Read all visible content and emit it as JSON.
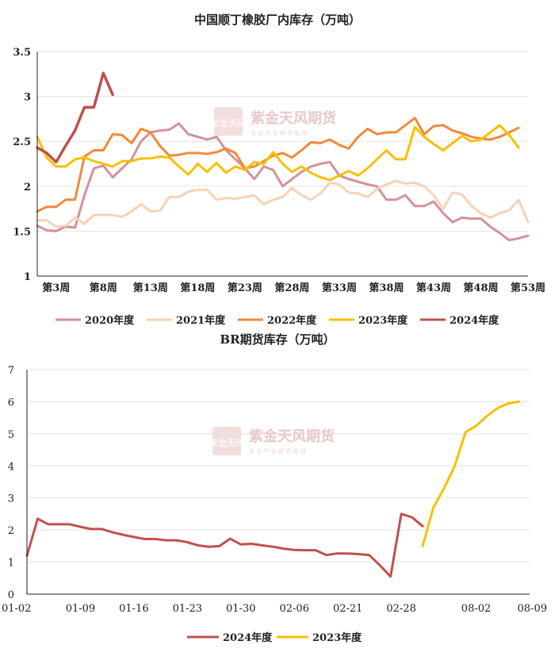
{
  "chart_data": [
    {
      "type": "line",
      "title": "中国顺丁橡胶厂内库存（万吨）",
      "xlabel": "",
      "ylabel": "",
      "ylim": [
        1,
        3.5
      ],
      "yticks": [
        "1",
        "1.5",
        "2",
        "2.5",
        "3",
        "3.5"
      ],
      "xrange": [
        1,
        53
      ],
      "xticks": [
        "第3周",
        "第8周",
        "第13周",
        "第18周",
        "第23周",
        "第28周",
        "第33周",
        "第38周",
        "第43周",
        "第48周",
        "第53周"
      ],
      "xtick_weeks": [
        3,
        8,
        13,
        18,
        23,
        28,
        33,
        38,
        43,
        48,
        53
      ],
      "series": [
        {
          "name": "2020年度",
          "color": "#d4919a",
          "start_week": 1,
          "values": [
            1.56,
            1.51,
            1.5,
            1.55,
            1.54,
            1.9,
            2.2,
            2.23,
            2.1,
            2.2,
            2.3,
            2.5,
            2.6,
            2.62,
            2.63,
            2.7,
            2.58,
            2.55,
            2.52,
            2.55,
            2.4,
            2.3,
            2.2,
            2.08,
            2.22,
            2.18,
            2.0,
            2.08,
            2.16,
            2.22,
            2.25,
            2.27,
            2.12,
            2.08,
            2.05,
            2.02,
            2.0,
            1.85,
            1.85,
            1.9,
            1.78,
            1.78,
            1.83,
            1.7,
            1.6,
            1.65,
            1.64,
            1.64,
            1.55,
            1.48,
            1.4,
            1.42,
            1.45
          ]
        },
        {
          "name": "2021年度",
          "color": "#f8d2b5",
          "start_week": 1,
          "values": [
            1.62,
            1.62,
            1.55,
            1.56,
            1.65,
            1.58,
            1.68,
            1.68,
            1.68,
            1.66,
            1.72,
            1.8,
            1.72,
            1.73,
            1.88,
            1.88,
            1.94,
            1.96,
            1.96,
            1.85,
            1.87,
            1.86,
            1.88,
            1.9,
            1.8,
            1.85,
            1.88,
            1.98,
            1.9,
            1.85,
            1.92,
            2.04,
            2.02,
            1.93,
            1.92,
            1.88,
            1.97,
            2.02,
            2.06,
            2.03,
            2.04,
            2.0,
            1.9,
            1.75,
            1.93,
            1.91,
            1.78,
            1.7,
            1.65,
            1.7,
            1.73,
            1.85,
            1.6
          ]
        },
        {
          "name": "2022年度",
          "color": "#f08a3c",
          "start_week": 1,
          "values": [
            1.72,
            1.77,
            1.77,
            1.85,
            1.85,
            2.33,
            2.4,
            2.4,
            2.58,
            2.57,
            2.48,
            2.64,
            2.6,
            2.45,
            2.34,
            2.35,
            2.37,
            2.37,
            2.36,
            2.38,
            2.42,
            2.37,
            2.2,
            2.22,
            2.28,
            2.34,
            2.37,
            2.32,
            2.4,
            2.49,
            2.48,
            2.52,
            2.46,
            2.42,
            2.55,
            2.64,
            2.58,
            2.6,
            2.6,
            2.68,
            2.76,
            2.58,
            2.67,
            2.68,
            2.62,
            2.59,
            2.55,
            2.53,
            2.52,
            2.55,
            2.6,
            2.65
          ]
        },
        {
          "name": "2023年度",
          "color": "#f8c000",
          "start_week": 1,
          "values": [
            2.55,
            2.32,
            2.22,
            2.22,
            2.3,
            2.32,
            2.28,
            2.25,
            2.22,
            2.28,
            2.28,
            2.31,
            2.31,
            2.33,
            2.32,
            2.22,
            2.13,
            2.25,
            2.16,
            2.26,
            2.15,
            2.22,
            2.18,
            2.27,
            2.25,
            2.38,
            2.25,
            2.16,
            2.22,
            2.15,
            2.1,
            2.07,
            2.12,
            2.17,
            2.12,
            2.2,
            2.3,
            2.4,
            2.3,
            2.3,
            2.66,
            2.55,
            2.47,
            2.4,
            2.48,
            2.56,
            2.5,
            2.52,
            2.6,
            2.68,
            2.57,
            2.43
          ]
        },
        {
          "name": "2024年度",
          "color": "#c0504d",
          "start_week": 1,
          "values": [
            2.43,
            2.37,
            2.27,
            2.45,
            2.62,
            2.88,
            2.88,
            3.26,
            3.02
          ]
        }
      ],
      "watermark": {
        "name": "紫金天风期货",
        "seal": "紫金天风",
        "sub": "企 业 产 业   研 究 驱 动"
      }
    },
    {
      "type": "line",
      "title": "BR期货库存（万吨）",
      "xlabel": "",
      "ylabel": "",
      "ylim": [
        0,
        7
      ],
      "yticks": [
        "0",
        "1",
        "2",
        "3",
        "4",
        "5",
        "6",
        "7"
      ],
      "xticks": [
        "01-02",
        "01-09",
        "01-16",
        "01-23",
        "01-30",
        "02-06",
        "02-21",
        "02-28",
        "08-02",
        "08-09"
      ],
      "xtick_index": [
        0,
        5,
        10,
        15,
        20,
        25,
        30,
        35,
        42,
        47
      ],
      "n_points": 48,
      "series": [
        {
          "name": "2024年度",
          "color": "#c0504d",
          "start_index": 0,
          "values": [
            1.2,
            2.35,
            2.18,
            2.18,
            2.18,
            2.1,
            2.03,
            2.03,
            1.93,
            1.85,
            1.78,
            1.72,
            1.72,
            1.68,
            1.68,
            1.62,
            1.52,
            1.48,
            1.5,
            1.73,
            1.55,
            1.57,
            1.52,
            1.48,
            1.42,
            1.38,
            1.37,
            1.37,
            1.22,
            1.27,
            1.27,
            1.25,
            1.22,
            0.9,
            0.55,
            2.5,
            2.4,
            2.12
          ]
        },
        {
          "name": "2023年度",
          "color": "#f8c000",
          "start_index": 37,
          "values": [
            1.5,
            2.7,
            3.3,
            4.0,
            5.05,
            5.25,
            5.55,
            5.8,
            5.95,
            6.0
          ]
        }
      ],
      "watermark": {
        "name": "紫金天风期货",
        "seal": "紫金天风",
        "sub": "企 业 产 业   研 究 驱 动"
      }
    }
  ]
}
